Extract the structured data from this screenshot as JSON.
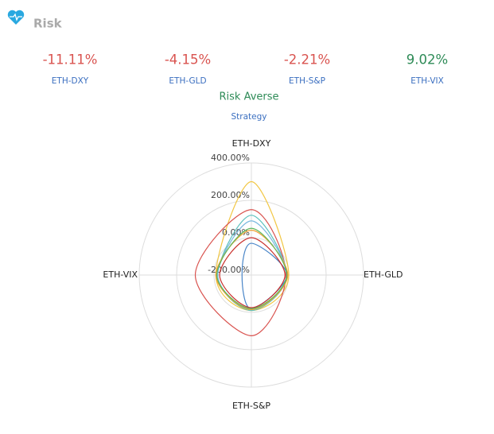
{
  "header": {
    "title": "Risk"
  },
  "stats": [
    {
      "value": "-11.11%",
      "label": "ETH-DXY",
      "color": "#d9534f"
    },
    {
      "value": "-4.15%",
      "label": "ETH-GLD",
      "color": "#d9534f"
    },
    {
      "value": "-2.21%",
      "label": "ETH-S&P",
      "color": "#d9534f"
    },
    {
      "value": "9.02%",
      "label": "ETH-VIX",
      "color": "#2e8b57"
    }
  ],
  "strategy": {
    "value": "Risk Averse",
    "label": "Strategy"
  },
  "chart_data": {
    "type": "radar",
    "categories": [
      "ETH-DXY",
      "ETH-GLD",
      "ETH-S&P",
      "ETH-VIX"
    ],
    "ylim": [
      -200,
      400
    ],
    "yticks": [
      {
        "value": -200,
        "label": "-200.00%"
      },
      {
        "value": 0,
        "label": "0.00%"
      },
      {
        "value": 200,
        "label": "200.00%"
      },
      {
        "value": 400,
        "label": "400.00%"
      }
    ],
    "series": [
      {
        "color": "#f2c744",
        "values": [
          300,
          0,
          -10,
          -10
        ]
      },
      {
        "color": "#d9534f",
        "values": [
          150,
          -15,
          125,
          100
        ]
      },
      {
        "color": "#5bc0be",
        "values": [
          120,
          -10,
          -10,
          -20
        ]
      },
      {
        "color": "#7ab8e0",
        "values": [
          90,
          -10,
          -20,
          -20
        ]
      },
      {
        "color": "#4a86c8",
        "values": [
          -30,
          -10,
          -20,
          -150
        ]
      },
      {
        "color": "#f0a030",
        "values": [
          40,
          -5,
          -15,
          -10
        ]
      },
      {
        "color": "#5cb85c",
        "values": [
          50,
          -10,
          -20,
          -15
        ]
      },
      {
        "color": "#c9302c",
        "values": [
          0,
          -20,
          -25,
          -30
        ]
      }
    ]
  }
}
